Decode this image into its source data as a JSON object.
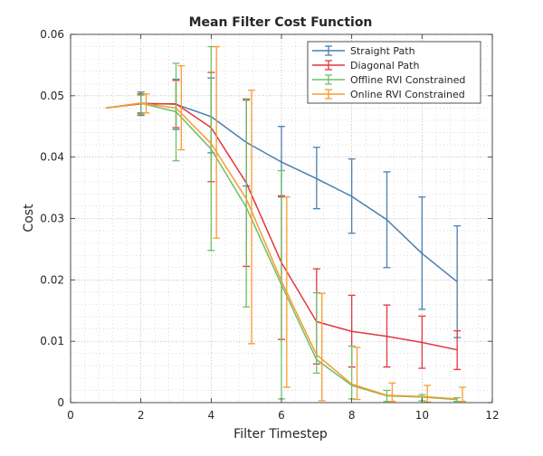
{
  "chart_data": {
    "type": "line",
    "title": "Mean Filter Cost Function",
    "xlabel": "Filter Timestep",
    "ylabel": "Cost",
    "xlim": [
      0,
      12
    ],
    "ylim": [
      0,
      0.06
    ],
    "xticks": [
      0,
      2,
      4,
      6,
      8,
      10,
      12
    ],
    "xtick_labels": [
      "0",
      "2",
      "4",
      "6",
      "8",
      "10",
      "12"
    ],
    "yticks": [
      0,
      0.01,
      0.02,
      0.03,
      0.04,
      0.05,
      0.06
    ],
    "ytick_labels": [
      "0",
      "0.01",
      "0.02",
      "0.03",
      "0.04",
      "0.05",
      "0.06"
    ],
    "grid": "major-and-minor",
    "legend_position": "top-right",
    "series": [
      {
        "name": "Straight Path",
        "color": "#4a7fb0",
        "x": [
          1,
          2,
          3,
          4,
          5,
          6,
          7,
          8,
          9,
          10,
          11
        ],
        "y": [
          0.048,
          0.0488,
          0.0486,
          0.0466,
          0.0424,
          0.0392,
          0.0365,
          0.0336,
          0.0298,
          0.0243,
          0.0197
        ],
        "err_x": [
          2,
          3,
          4,
          5,
          6,
          7,
          8,
          9,
          10,
          11
        ],
        "err_low": [
          0.0468,
          0.0445,
          0.0407,
          0.0353,
          0.0335,
          0.0316,
          0.0276,
          0.022,
          0.0152,
          0.0106
        ],
        "err_high": [
          0.0506,
          0.0527,
          0.0529,
          0.0495,
          0.045,
          0.0416,
          0.0397,
          0.0376,
          0.0335,
          0.0288
        ]
      },
      {
        "name": "Diagonal Path",
        "color": "#e3363d",
        "x": [
          1,
          2,
          3,
          4,
          5,
          6,
          7,
          8,
          9,
          10,
          11
        ],
        "y": [
          0.048,
          0.0487,
          0.0487,
          0.0448,
          0.0358,
          0.0228,
          0.0132,
          0.0116,
          0.0108,
          0.0098,
          0.0086
        ],
        "err_x": [
          2,
          3,
          4,
          5,
          6,
          7,
          8,
          9,
          10,
          11
        ],
        "err_low": [
          0.0472,
          0.0448,
          0.036,
          0.0222,
          0.0103,
          0.0063,
          0.0058,
          0.0058,
          0.0056,
          0.0054
        ],
        "err_high": [
          0.0503,
          0.0525,
          0.0538,
          0.0493,
          0.0337,
          0.0218,
          0.0175,
          0.0159,
          0.0141,
          0.0117
        ]
      },
      {
        "name": "Offline RVI Constrained",
        "color": "#6cc168",
        "x": [
          1,
          2,
          3,
          4,
          5,
          6,
          7,
          8,
          9,
          10,
          11
        ],
        "y": [
          0.048,
          0.0488,
          0.0474,
          0.0413,
          0.0318,
          0.0192,
          0.007,
          0.0028,
          0.0011,
          0.0009,
          0.0005
        ],
        "err_x": [
          2,
          3,
          4,
          5,
          6,
          7,
          8,
          9,
          10,
          11
        ],
        "err_low": [
          0.047,
          0.0394,
          0.0248,
          0.0156,
          0.0006,
          0.0048,
          0.0006,
          0.0002,
          0.0003,
          0.0002
        ],
        "err_high": [
          0.0501,
          0.0553,
          0.058,
          0.0495,
          0.0378,
          0.0179,
          0.0092,
          0.002,
          0.0013,
          0.0008
        ]
      },
      {
        "name": "Online RVI Constrained",
        "color": "#f99b2e",
        "x": [
          1,
          2,
          3,
          4,
          5,
          6,
          7,
          8,
          9,
          10,
          11
        ],
        "y": [
          0.048,
          0.0488,
          0.048,
          0.0422,
          0.0332,
          0.0198,
          0.0078,
          0.003,
          0.0012,
          0.001,
          0.0006
        ],
        "err_x": [
          2.15,
          3.15,
          4.15,
          5.15,
          6.15,
          7.15,
          8.15,
          9.15,
          10.15,
          11.15
        ],
        "err_low": [
          0.0472,
          0.0412,
          0.0268,
          0.0096,
          0.0025,
          0.0003,
          0.0005,
          0.0002,
          0.0001,
          0.0002
        ],
        "err_high": [
          0.0503,
          0.0549,
          0.058,
          0.0509,
          0.0335,
          0.0178,
          0.009,
          0.0032,
          0.0028,
          0.0025
        ]
      }
    ]
  }
}
